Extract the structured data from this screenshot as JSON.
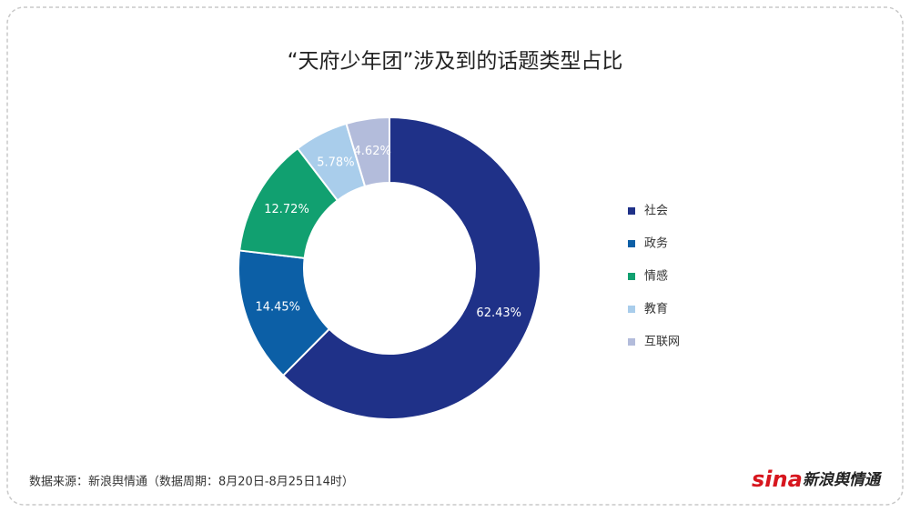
{
  "chart_data": {
    "type": "donut",
    "title": "“天府少年团”涉及到的话题类型占比",
    "categories": [
      "社会",
      "政务",
      "情感",
      "教育",
      "互联网"
    ],
    "values": [
      62.43,
      14.45,
      12.72,
      5.78,
      4.62
    ],
    "value_labels": [
      "62.43%",
      "14.45%",
      "12.72%",
      "5.78%",
      "4.62%"
    ],
    "colors": [
      "#1f3188",
      "#0c5fa6",
      "#11a070",
      "#a9cdeb",
      "#b3bcdb"
    ],
    "legend": "right",
    "source": "数据来源：新浪舆情通（数据周期：8月20日-8月25日14时）",
    "logo_brand": "sina",
    "logo_text": "新浪舆情通"
  }
}
